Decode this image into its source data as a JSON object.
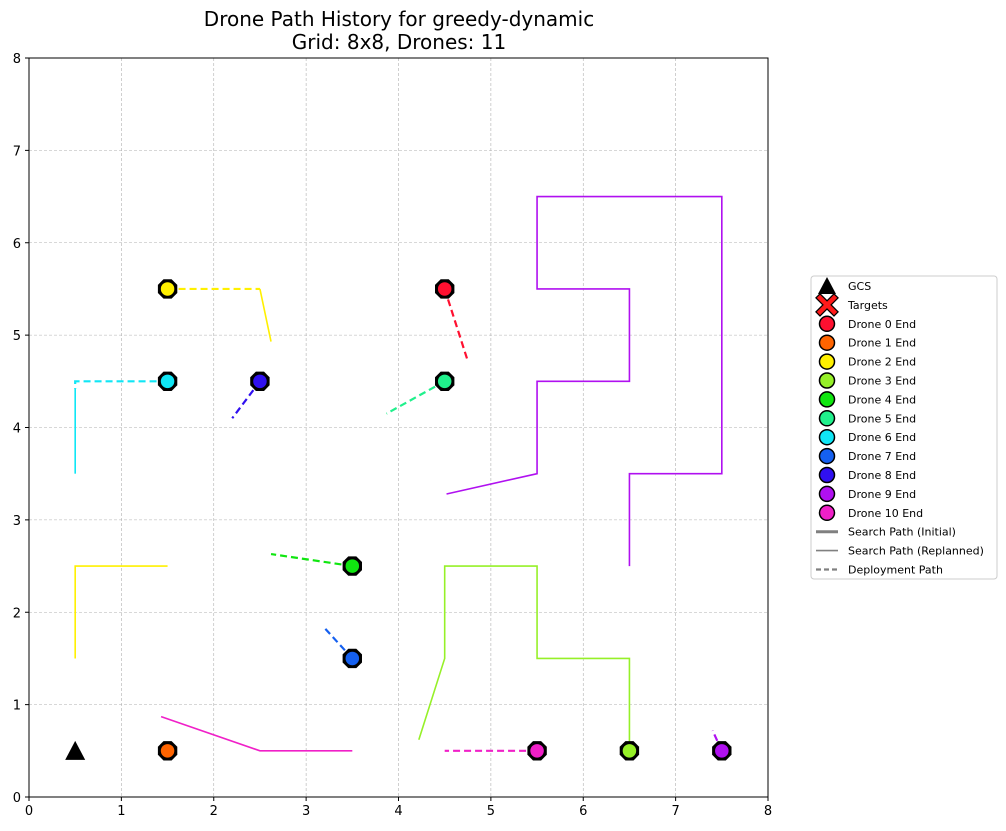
{
  "chart_data": {
    "type": "scatter",
    "title": "Drone Path History for greedy-dynamic",
    "subtitle": "Grid: 8x8, Drones: 11",
    "xlabel": "",
    "ylabel": "",
    "xlim": [
      0,
      8
    ],
    "ylim": [
      0,
      8
    ],
    "x_ticks": [
      "0",
      "1",
      "2",
      "3",
      "4",
      "5",
      "6",
      "7",
      "8"
    ],
    "y_ticks": [
      "0",
      "1",
      "2",
      "3",
      "4",
      "5",
      "6",
      "7",
      "8"
    ],
    "grid": true,
    "legend_position": "right",
    "gcs": {
      "x": 0.5,
      "y": 0.5,
      "color": "#000000"
    },
    "drones": [
      {
        "id": 0,
        "label": "Drone 0 End",
        "color": "#ff1030",
        "end": [
          4.5,
          5.5
        ],
        "paths": [
          {
            "style": "deploy",
            "points": [
              [
                4.5,
                5.5
              ],
              [
                4.75,
                4.72
              ]
            ]
          }
        ]
      },
      {
        "id": 1,
        "label": "Drone 1 End",
        "color": "#ff6400",
        "end": [
          1.5,
          0.5
        ],
        "paths": []
      },
      {
        "id": 2,
        "label": "Drone 2 End",
        "color": "#fff000",
        "end": [
          1.5,
          5.5
        ],
        "paths": [
          {
            "style": "deploy",
            "points": [
              [
                1.5,
                5.5
              ],
              [
                2.5,
                5.5
              ]
            ]
          },
          {
            "style": "replanned",
            "points": [
              [
                2.5,
                5.5
              ],
              [
                2.62,
                4.93
              ]
            ]
          },
          {
            "style": "replanned",
            "points": [
              [
                0.5,
                1.5
              ],
              [
                0.5,
                2.5
              ],
              [
                1.5,
                2.5
              ]
            ]
          }
        ]
      },
      {
        "id": 3,
        "label": "Drone 3 End",
        "color": "#96f028",
        "end": [
          6.5,
          0.5
        ],
        "paths": [
          {
            "style": "replanned",
            "points": [
              [
                6.5,
                0.5
              ],
              [
                6.5,
                1.5
              ],
              [
                5.5,
                1.5
              ],
              [
                5.5,
                2.5
              ],
              [
                4.5,
                2.5
              ],
              [
                4.5,
                1.5
              ],
              [
                4.22,
                0.62
              ]
            ]
          }
        ]
      },
      {
        "id": 4,
        "label": "Drone 4 End",
        "color": "#10e610",
        "end": [
          3.5,
          2.5
        ],
        "paths": [
          {
            "style": "deploy",
            "points": [
              [
                3.5,
                2.5
              ],
              [
                2.62,
                2.63
              ]
            ]
          }
        ]
      },
      {
        "id": 5,
        "label": "Drone 5 End",
        "color": "#20f08c",
        "end": [
          4.5,
          4.5
        ],
        "paths": [
          {
            "style": "deploy",
            "points": [
              [
                4.5,
                4.5
              ],
              [
                3.87,
                4.15
              ]
            ]
          }
        ]
      },
      {
        "id": 6,
        "label": "Drone 6 End",
        "color": "#10e6f5",
        "end": [
          1.5,
          4.5
        ],
        "paths": [
          {
            "style": "deploy",
            "points": [
              [
                1.5,
                4.5
              ],
              [
                0.5,
                4.5
              ],
              [
                0.5,
                4.42
              ]
            ]
          },
          {
            "style": "replanned",
            "points": [
              [
                0.5,
                4.42
              ],
              [
                0.5,
                3.5
              ]
            ]
          }
        ]
      },
      {
        "id": 7,
        "label": "Drone 7 End",
        "color": "#1560f0",
        "end": [
          3.5,
          1.5
        ],
        "paths": [
          {
            "style": "deploy",
            "points": [
              [
                3.5,
                1.5
              ],
              [
                3.19,
                1.84
              ]
            ]
          }
        ]
      },
      {
        "id": 8,
        "label": "Drone 8 End",
        "color": "#3010f0",
        "end": [
          2.5,
          4.5
        ],
        "paths": [
          {
            "style": "deploy",
            "points": [
              [
                2.5,
                4.5
              ],
              [
                2.2,
                4.1
              ]
            ]
          }
        ]
      },
      {
        "id": 9,
        "label": "Drone 9 End",
        "color": "#b010f0",
        "end": [
          7.5,
          0.5
        ],
        "paths": [
          {
            "style": "deploy",
            "points": [
              [
                7.5,
                0.5
              ],
              [
                7.4,
                0.72
              ]
            ]
          },
          {
            "style": "replanned",
            "points": [
              [
                6.5,
                2.5
              ],
              [
                6.5,
                3.5
              ],
              [
                7.5,
                3.5
              ],
              [
                7.5,
                6.5
              ],
              [
                5.5,
                6.5
              ],
              [
                5.5,
                5.5
              ],
              [
                6.5,
                5.5
              ],
              [
                6.5,
                4.5
              ],
              [
                5.5,
                4.5
              ],
              [
                5.5,
                3.5
              ],
              [
                4.52,
                3.28
              ]
            ]
          }
        ]
      },
      {
        "id": 10,
        "label": "Drone 10 End",
        "color": "#f020c8",
        "end": [
          5.5,
          0.5
        ],
        "paths": [
          {
            "style": "deploy",
            "points": [
              [
                5.5,
                0.5
              ],
              [
                4.5,
                0.5
              ]
            ]
          },
          {
            "style": "replanned",
            "points": [
              [
                3.5,
                0.5
              ],
              [
                2.5,
                0.5
              ],
              [
                1.43,
                0.87
              ]
            ]
          }
        ]
      }
    ],
    "legend": {
      "gcs": "GCS",
      "targets": "Targets",
      "drone_labels": [
        "Drone 0 End",
        "Drone 1 End",
        "Drone 2 End",
        "Drone 3 End",
        "Drone 4 End",
        "Drone 5 End",
        "Drone 6 End",
        "Drone 7 End",
        "Drone 8 End",
        "Drone 9 End",
        "Drone 10 End"
      ],
      "search_initial": "Search Path (Initial)",
      "search_replanned": "Search Path (Replanned)",
      "deployment": "Deployment Path"
    }
  }
}
